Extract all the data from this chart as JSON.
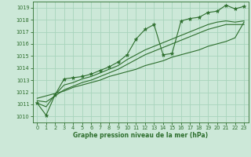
{
  "title": "Graphe pression niveau de la mer (hPa)",
  "bg_color": "#cce8d8",
  "grid_color": "#a8d4bc",
  "line_color": "#2d6e2d",
  "xlim": [
    -0.5,
    23.5
  ],
  "ylim": [
    1009.5,
    1019.5
  ],
  "yticks": [
    1010,
    1011,
    1012,
    1013,
    1014,
    1015,
    1016,
    1017,
    1018,
    1019
  ],
  "xticks": [
    0,
    1,
    2,
    3,
    4,
    5,
    6,
    7,
    8,
    9,
    10,
    11,
    12,
    13,
    14,
    15,
    16,
    17,
    18,
    19,
    20,
    21,
    22,
    23
  ],
  "hours": [
    0,
    1,
    2,
    3,
    4,
    5,
    6,
    7,
    8,
    9,
    10,
    11,
    12,
    13,
    14,
    15,
    16,
    17,
    18,
    19,
    20,
    21,
    22,
    23
  ],
  "pressure_main": [
    1011.1,
    1010.1,
    1011.8,
    1013.1,
    1013.2,
    1013.3,
    1013.5,
    1013.8,
    1014.1,
    1014.5,
    1015.1,
    1016.4,
    1017.2,
    1017.6,
    1015.1,
    1015.2,
    1017.9,
    1018.1,
    1018.2,
    1018.6,
    1018.7,
    1019.2,
    1018.9,
    1019.1
  ],
  "pressure_line2": [
    1011.1,
    1010.8,
    1011.8,
    1012.6,
    1012.8,
    1013.1,
    1013.3,
    1013.6,
    1013.9,
    1014.2,
    1014.7,
    1015.1,
    1015.5,
    1015.8,
    1016.1,
    1016.4,
    1016.7,
    1017.0,
    1017.3,
    1017.6,
    1017.8,
    1017.9,
    1017.8,
    1017.9
  ],
  "pressure_line3": [
    1011.3,
    1011.2,
    1011.7,
    1012.2,
    1012.5,
    1012.8,
    1013.0,
    1013.3,
    1013.6,
    1013.9,
    1014.3,
    1014.7,
    1015.1,
    1015.4,
    1015.7,
    1016.0,
    1016.3,
    1016.6,
    1016.9,
    1017.2,
    1017.4,
    1017.6,
    1017.6,
    1017.6
  ],
  "pressure_trend": [
    1011.5,
    1011.7,
    1011.9,
    1012.1,
    1012.4,
    1012.6,
    1012.8,
    1013.0,
    1013.3,
    1013.5,
    1013.7,
    1013.9,
    1014.2,
    1014.4,
    1014.6,
    1014.9,
    1015.1,
    1015.3,
    1015.5,
    1015.8,
    1016.0,
    1016.2,
    1016.5,
    1017.8
  ]
}
